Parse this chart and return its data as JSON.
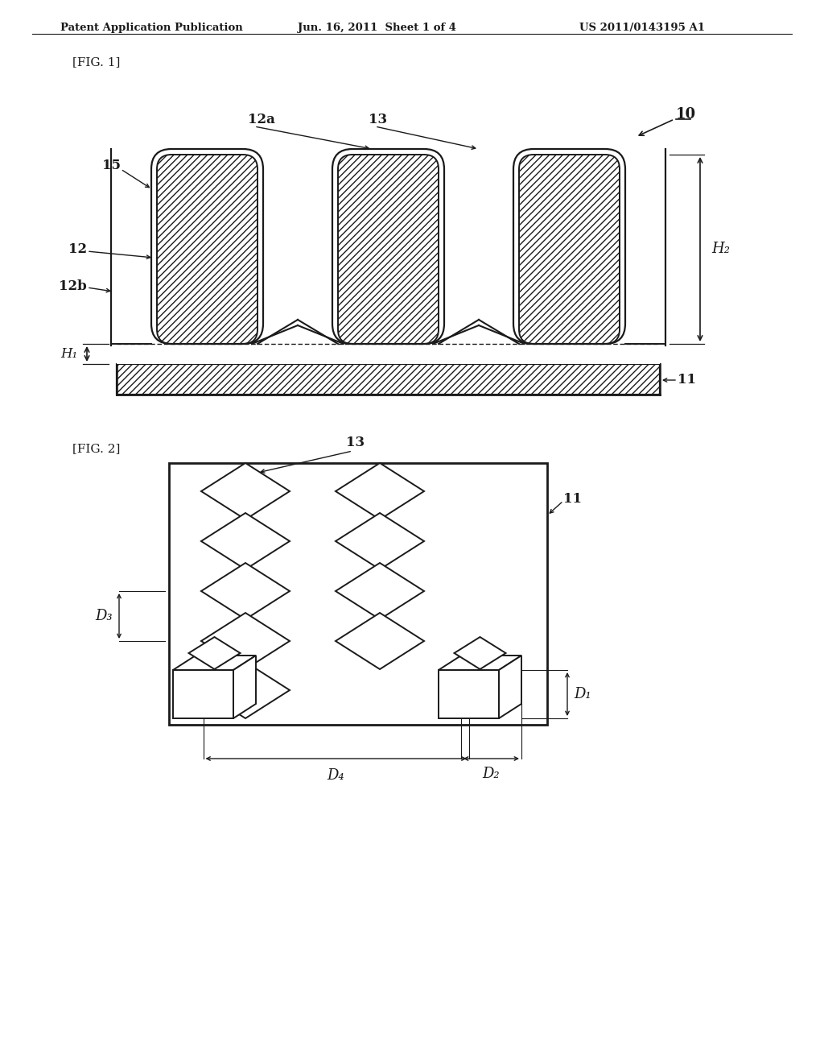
{
  "header_left": "Patent Application Publication",
  "header_mid": "Jun. 16, 2011  Sheet 1 of 4",
  "header_right": "US 2011/0143195 A1",
  "fig1_label": "[FIG. 1]",
  "fig2_label": "[FIG. 2]",
  "bg_color": "#ffffff",
  "line_color": "#1a1a1a",
  "label_10": "10",
  "label_11_fig1": "11",
  "label_12": "12",
  "label_12a": "12a",
  "label_12b": "12b",
  "label_13_fig1": "13",
  "label_15": "15",
  "label_H1": "H₁",
  "label_H2": "H₂",
  "label_11_fig2": "11",
  "label_13_fig2": "13",
  "label_D1": "D₁",
  "label_D2": "D₂",
  "label_D3": "D₃",
  "label_D4": "D₄"
}
